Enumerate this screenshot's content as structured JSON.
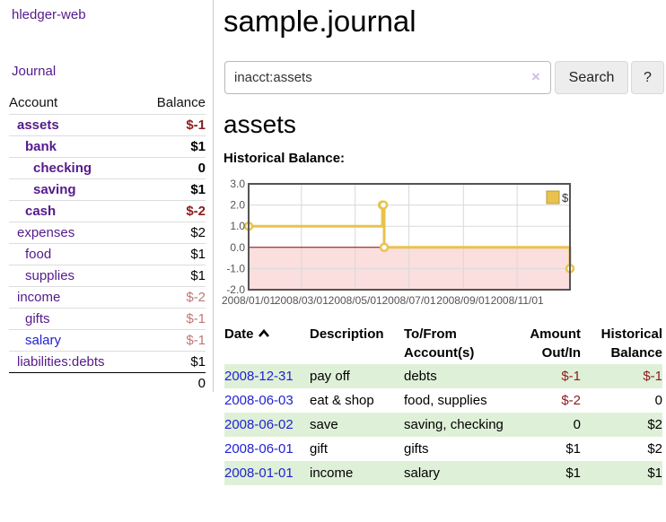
{
  "sidebar": {
    "brand": "hledger-web",
    "journal_label": "Journal",
    "account_header": "Account",
    "balance_header": "Balance",
    "total": "0",
    "rows": [
      {
        "account": "assets",
        "balance": "$-1",
        "indent": 1,
        "bold": true,
        "link_color": "purple",
        "balance_tone": "neg"
      },
      {
        "account": "bank",
        "balance": "$1",
        "indent": 2,
        "bold": true,
        "link_color": "purple",
        "balance_tone": "normal"
      },
      {
        "account": "checking",
        "balance": "0",
        "indent": 3,
        "bold": true,
        "link_color": "purple",
        "balance_tone": "normal"
      },
      {
        "account": "saving",
        "balance": "$1",
        "indent": 3,
        "bold": true,
        "link_color": "purple",
        "balance_tone": "normal"
      },
      {
        "account": "cash",
        "balance": "$-2",
        "indent": 2,
        "bold": true,
        "link_color": "purple",
        "balance_tone": "neg"
      },
      {
        "account": "expenses",
        "balance": "$2",
        "indent": 1,
        "bold": false,
        "link_color": "purple",
        "balance_tone": "normal"
      },
      {
        "account": "food",
        "balance": "$1",
        "indent": 2,
        "bold": false,
        "link_color": "purple",
        "balance_tone": "normal"
      },
      {
        "account": "supplies",
        "balance": "$1",
        "indent": 2,
        "bold": false,
        "link_color": "purple",
        "balance_tone": "normal"
      },
      {
        "account": "income",
        "balance": "$-2",
        "indent": 1,
        "bold": false,
        "link_color": "purple",
        "balance_tone": "neg-soft"
      },
      {
        "account": "gifts",
        "balance": "$-1",
        "indent": 2,
        "bold": false,
        "link_color": "purple",
        "balance_tone": "neg-soft"
      },
      {
        "account": "salary",
        "balance": "$-1",
        "indent": 2,
        "bold": false,
        "link_color": "blue",
        "balance_tone": "neg-soft"
      },
      {
        "account": "liabilities:debts",
        "balance": "$1",
        "indent": 1,
        "bold": false,
        "link_color": "purple",
        "balance_tone": "normal"
      }
    ]
  },
  "main": {
    "title": "sample.journal",
    "search": {
      "value": "inacct:assets",
      "clear_icon": "×",
      "search_label": "Search",
      "help_label": "?"
    },
    "account_heading": "assets",
    "chart_label": "Historical Balance:",
    "register": {
      "headers": [
        "Date",
        "Description",
        "To/From Account(s)",
        "Amount Out/In",
        "Historical Balance"
      ],
      "sort": {
        "column": "Date",
        "direction": "ascending"
      },
      "rows": [
        {
          "date": "2008-12-31",
          "description": "pay off",
          "accounts": "debts",
          "amount": "$-1",
          "amount_tone": "neg",
          "balance": "$-1",
          "balance_tone": "neg",
          "shaded": true
        },
        {
          "date": "2008-06-03",
          "description": "eat & shop",
          "accounts": "food, supplies",
          "amount": "$-2",
          "amount_tone": "neg",
          "balance": "0",
          "balance_tone": "normal",
          "shaded": false
        },
        {
          "date": "2008-06-02",
          "description": "save",
          "accounts": "saving, checking",
          "amount": "0",
          "amount_tone": "normal",
          "balance": "$2",
          "balance_tone": "normal",
          "shaded": true
        },
        {
          "date": "2008-06-01",
          "description": "gift",
          "accounts": "gifts",
          "amount": "$1",
          "amount_tone": "normal",
          "balance": "$2",
          "balance_tone": "normal",
          "shaded": false
        },
        {
          "date": "2008-01-01",
          "description": "income",
          "accounts": "salary",
          "amount": "$1",
          "amount_tone": "normal",
          "balance": "$1",
          "balance_tone": "normal",
          "shaded": true
        }
      ]
    }
  },
  "chart_data": {
    "type": "line",
    "title": "Historical Balance",
    "step": "after",
    "grid": true,
    "legend_position": "top-right",
    "x_start": "2008-01-01",
    "x_end": "2008-12-31",
    "ylim": [
      -2,
      3
    ],
    "y_ticks": [
      3.0,
      2.0,
      1.0,
      0.0,
      -1.0,
      -2.0
    ],
    "x_ticks": [
      {
        "label": "2008/01/01",
        "date": "2008-01-01"
      },
      {
        "label": "2008/03/01",
        "date": "2008-03-01"
      },
      {
        "label": "2008/05/01",
        "date": "2008-05-01"
      },
      {
        "label": "2008/07/01",
        "date": "2008-07-01"
      },
      {
        "label": "2008/09/01",
        "date": "2008-09-01"
      },
      {
        "label": "2008/11/01",
        "date": "2008-11-01"
      }
    ],
    "zero_line_color": "#8b0000",
    "negative_fill": "#fbdede",
    "series": [
      {
        "name": "$",
        "color": "#e9c24d",
        "points": [
          {
            "date": "2008-01-01",
            "value": 1
          },
          {
            "date": "2008-06-01",
            "value": 2
          },
          {
            "date": "2008-06-02",
            "value": 2
          },
          {
            "date": "2008-06-03",
            "value": 0
          },
          {
            "date": "2008-12-31",
            "value": -1
          }
        ]
      }
    ]
  },
  "colors": {
    "link_purple": "#551a8b",
    "link_blue": "#2222d2",
    "negative_strong": "#8b1c1c",
    "negative_soft": "#c07878",
    "row_green": "#dff0d8",
    "chart_line": "#e9c24d",
    "chart_negative_fill": "#fbdede",
    "chart_zero_line": "#8b0000"
  }
}
